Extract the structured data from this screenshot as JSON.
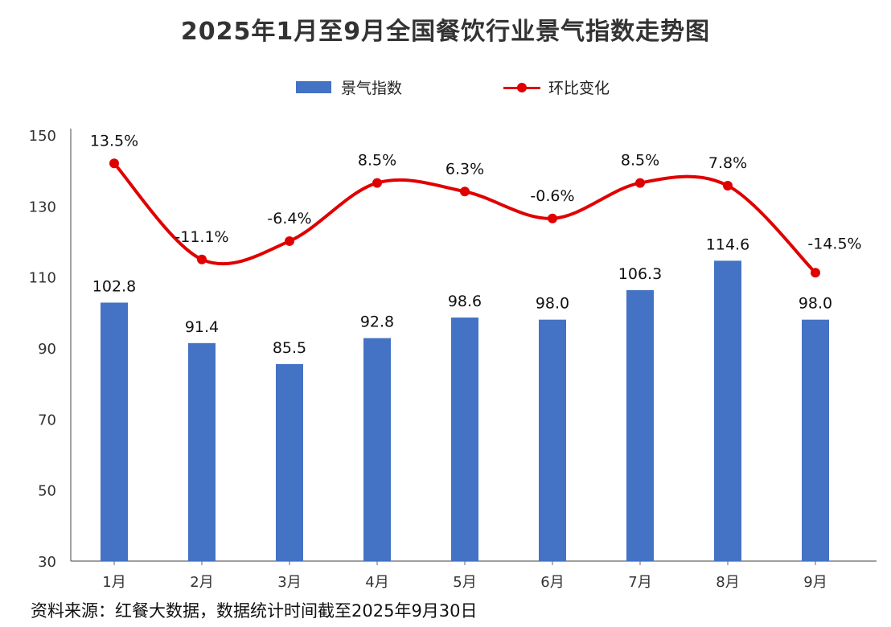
{
  "title": "2025年1月至9月全国餐饮行业景气指数走势图",
  "legend": {
    "bar_label": "景气指数",
    "line_label": "环比变化"
  },
  "source": "资料来源：红餐大数据，数据统计时间截至2025年9月30日",
  "colors": {
    "bar": "#4472C4",
    "line": "#E00000",
    "axis": "#555555"
  },
  "chart_data": {
    "type": "bar",
    "categories": [
      "1月",
      "2月",
      "3月",
      "4月",
      "5月",
      "6月",
      "7月",
      "8月",
      "9月"
    ],
    "series": [
      {
        "name": "景气指数",
        "type": "bar",
        "values": [
          102.8,
          91.4,
          85.5,
          92.8,
          98.6,
          98.0,
          106.3,
          114.6,
          98.0
        ],
        "labels": [
          "102.8",
          "91.4",
          "85.5",
          "92.8",
          "98.6",
          "98.0",
          "106.3",
          "114.6",
          "98.0"
        ]
      },
      {
        "name": "环比变化",
        "type": "line",
        "values": [
          13.5,
          -11.1,
          -6.4,
          8.5,
          6.3,
          -0.6,
          8.5,
          7.8,
          -14.5
        ],
        "labels": [
          "13.5%",
          "-11.1%",
          "-6.4%",
          "8.5%",
          "6.3%",
          "-0.6%",
          "8.5%",
          "7.8%",
          "-14.5%"
        ]
      }
    ],
    "y_ticks": [
      "150",
      "130",
      "110",
      "90",
      "70",
      "50",
      "30"
    ],
    "ylim": [
      30,
      150
    ],
    "grid": false,
    "legend_position": "top-center"
  }
}
